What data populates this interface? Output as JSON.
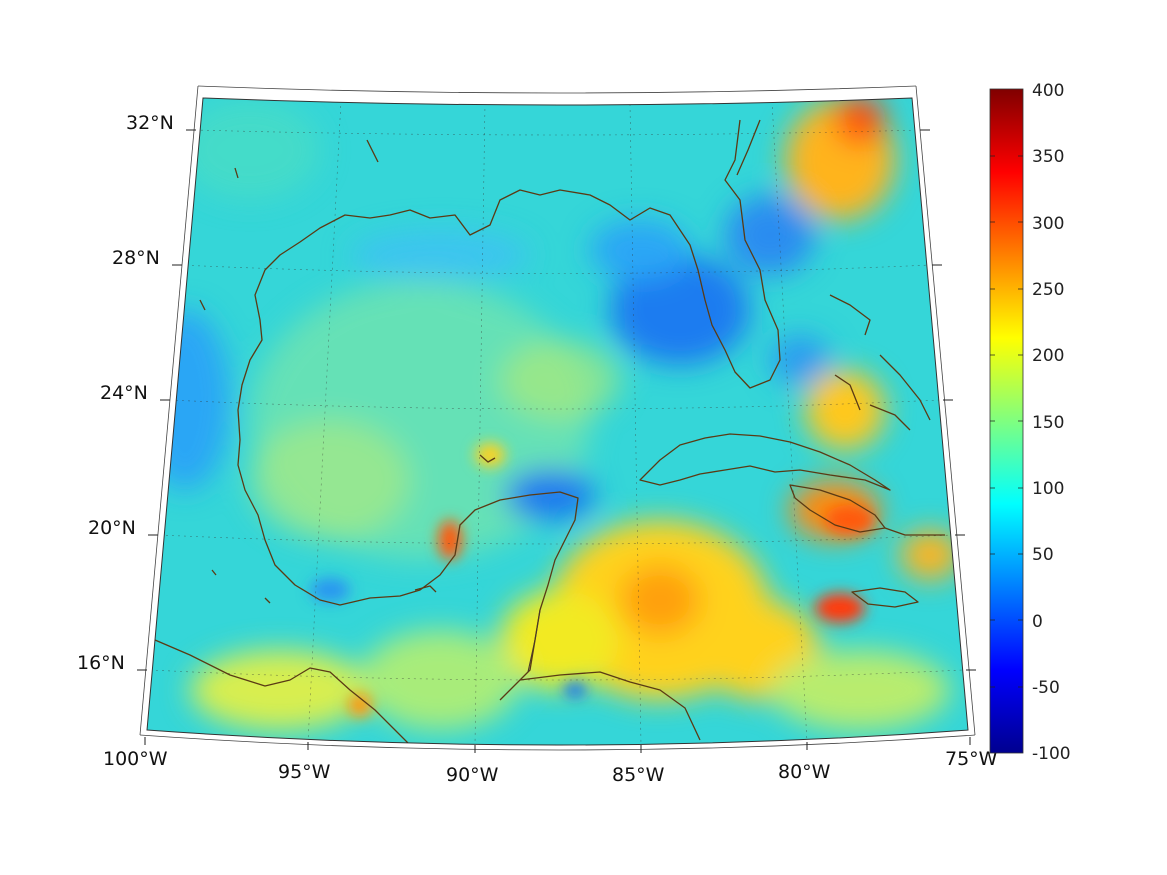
{
  "map": {
    "latitude_labels": [
      "32°N",
      "28°N",
      "24°N",
      "20°N",
      "16°N"
    ],
    "longitude_labels": [
      "100°W",
      "95°W",
      "90°W",
      "85°W",
      "80°W",
      "75°W"
    ]
  },
  "colorbar": {
    "min": -100,
    "max": 400,
    "ticks": [
      "400",
      "350",
      "300",
      "250",
      "200",
      "150",
      "100",
      "50",
      "0",
      "-50",
      "-100"
    ],
    "colormap": "jet"
  },
  "colors": {
    "coastline": "#5a3a14",
    "background": "#ffffff"
  }
}
